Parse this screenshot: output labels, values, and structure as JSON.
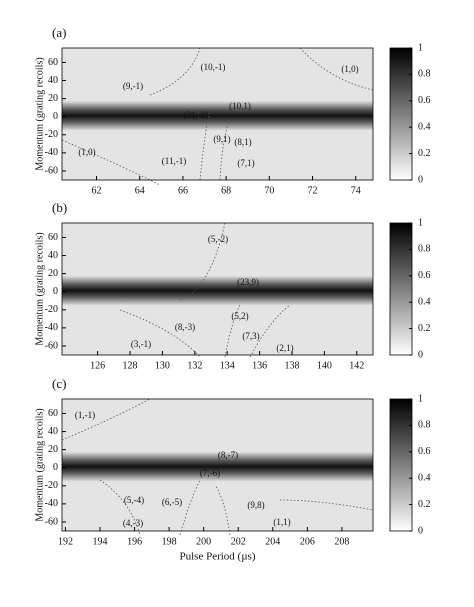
{
  "chart_data": [
    {
      "type": "heatmap",
      "label": "(a)",
      "ylabel": "Momentum (grating recoils)",
      "xlim": [
        60.4,
        74.8
      ],
      "xticks": [
        62,
        64,
        66,
        68,
        70,
        72,
        74
      ],
      "ylim": [
        -70,
        76
      ],
      "yticks": [
        -60,
        -40,
        -20,
        0,
        20,
        40,
        60
      ],
      "clim": [
        0,
        1
      ],
      "cticks": [
        0,
        0.2,
        0.4,
        0.6,
        0.8,
        1
      ],
      "annotations": [
        "(9,-1)",
        "(10,-1)",
        "(1,0)",
        "(21,-2)",
        "(10,1)",
        "(9,1)",
        "(8,1)",
        "(7,1)",
        "(1,0)",
        "(11,-1)"
      ]
    },
    {
      "type": "heatmap",
      "label": "(b)",
      "ylabel": "Momentum (grating recoils)",
      "xlim": [
        123.8,
        143
      ],
      "xticks": [
        126,
        128,
        130,
        132,
        134,
        136,
        138,
        140,
        142
      ],
      "ylim": [
        -70,
        76
      ],
      "yticks": [
        -60,
        -40,
        -20,
        0,
        20,
        40,
        60
      ],
      "clim": [
        0,
        1
      ],
      "cticks": [
        0,
        0.2,
        0.4,
        0.6,
        0.8,
        1
      ],
      "annotations": [
        "(5,-2)",
        "(23,9)",
        "(5,2)",
        "(8,-3)",
        "(3,-1)",
        "(7,3)",
        "(2,1)"
      ]
    },
    {
      "type": "heatmap",
      "label": "(c)",
      "ylabel": "Momentum (grating recoils)",
      "xlabel": "Pulse Period (µs)",
      "xlim": [
        191.8,
        209.8
      ],
      "xticks": [
        192,
        194,
        196,
        198,
        200,
        202,
        204,
        206,
        208
      ],
      "ylim": [
        -70,
        76
      ],
      "yticks": [
        -60,
        -40,
        -20,
        0,
        20,
        40,
        60
      ],
      "clim": [
        0,
        1
      ],
      "cticks": [
        0,
        0.2,
        0.4,
        0.6,
        0.8,
        1
      ],
      "annotations": [
        "(1,-1)",
        "(8,-7)",
        "(7,-6)",
        "(5,-4)",
        "(6,-5)",
        "(9,8)",
        "(4,-3)",
        "(1,1)"
      ]
    }
  ]
}
